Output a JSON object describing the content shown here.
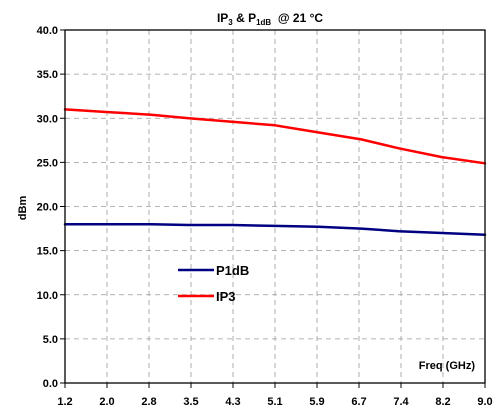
{
  "chart_data": {
    "type": "line",
    "title_parts": {
      "a": "IP",
      "a_sub": "3",
      "mid": " & P",
      "b_sub": "1dB",
      "tail": "  @ 21 °C"
    },
    "xlabel": "Freq (GHz)",
    "ylabel": "dBm",
    "x_tick_labels": [
      "1.2",
      "2.0",
      "2.8",
      "3.5",
      "4.3",
      "5.1",
      "5.9",
      "6.7",
      "7.4",
      "8.2",
      "9.0"
    ],
    "y_tick_labels": [
      "0.0",
      "5.0",
      "10.0",
      "15.0",
      "20.0",
      "25.0",
      "30.0",
      "35.0",
      "40.0"
    ],
    "xlim": [
      1.2,
      9.0
    ],
    "ylim": [
      0,
      40
    ],
    "grid": true,
    "legend_position": "center-left",
    "series": [
      {
        "name": "P1dB",
        "color": "#000080",
        "x": [
          1.2,
          2.0,
          2.8,
          3.5,
          4.3,
          5.1,
          5.9,
          6.7,
          7.4,
          8.2,
          9.0
        ],
        "y": [
          18.0,
          18.0,
          18.0,
          17.9,
          17.9,
          17.8,
          17.7,
          17.5,
          17.2,
          17.0,
          16.8
        ]
      },
      {
        "name": "IP3",
        "color": "#ff0000",
        "x": [
          1.2,
          2.0,
          2.8,
          3.5,
          4.3,
          5.1,
          5.9,
          6.7,
          7.4,
          8.2,
          9.0
        ],
        "y": [
          31.0,
          30.7,
          30.4,
          30.0,
          29.6,
          29.2,
          28.4,
          27.6,
          26.6,
          25.6,
          24.9
        ]
      }
    ]
  }
}
